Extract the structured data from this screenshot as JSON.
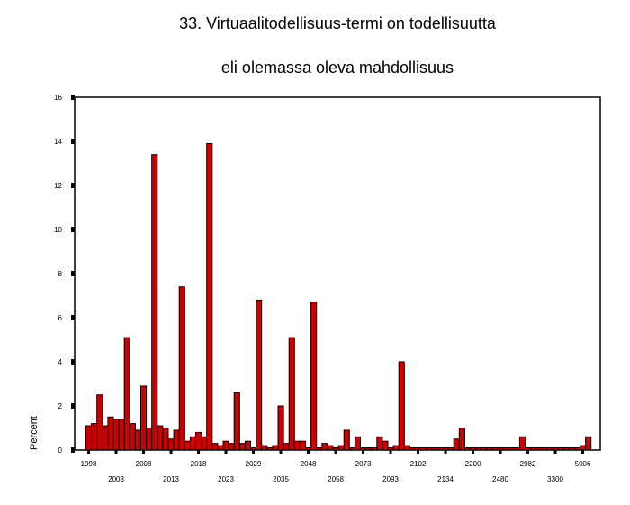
{
  "chart_data": {
    "type": "bar",
    "title": "33. Virtuaalitodellisuus-termi on todellisuutta",
    "subtitle": "eli olemassa oleva mahdollisuus",
    "xlabel": "",
    "ylabel": "Percent",
    "ylim": [
      0,
      16
    ],
    "yticks": [
      "0",
      "2",
      "4",
      "6",
      "8",
      "10",
      "12",
      "14",
      "16"
    ],
    "xtick_labels_row1": [
      "1998",
      "2008",
      "2018",
      "2029",
      "2048",
      "2073",
      "2102",
      "2200",
      "2982",
      "5006"
    ],
    "xtick_labels_row2": [
      "2003",
      "2013",
      "2023",
      "2035",
      "2058",
      "2093",
      "2134",
      "2480",
      "3300"
    ],
    "bar_color": "#cc0000",
    "grid": false,
    "values": [
      1.1,
      1.2,
      2.5,
      1.1,
      1.5,
      1.4,
      1.4,
      5.1,
      1.2,
      0.9,
      2.9,
      1.0,
      13.4,
      1.1,
      1.0,
      0.5,
      0.9,
      7.4,
      0.4,
      0.6,
      0.8,
      0.6,
      13.9,
      0.3,
      0.2,
      0.4,
      0.3,
      2.6,
      0.3,
      0.4,
      0.1,
      6.8,
      0.2,
      0.1,
      0.2,
      2.0,
      0.3,
      5.1,
      0.4,
      0.4,
      0.1,
      6.7,
      0.1,
      0.3,
      0.2,
      0.1,
      0.2,
      0.9,
      0.1,
      0.6,
      0.1,
      0.1,
      0.1,
      0.6,
      0.4,
      0.1,
      0.2,
      4.0,
      0.2,
      0.1,
      0.1,
      0.1,
      0.1,
      0.1,
      0.1,
      0.1,
      0.1,
      0.5,
      1.0,
      0.1,
      0.1,
      0.1,
      0.1,
      0.1,
      0.1,
      0.1,
      0.1,
      0.1,
      0.1,
      0.6,
      0.1,
      0.1,
      0.1,
      0.1,
      0.1,
      0.1,
      0.1,
      0.1,
      0.1,
      0.1,
      0.2,
      0.6
    ]
  }
}
